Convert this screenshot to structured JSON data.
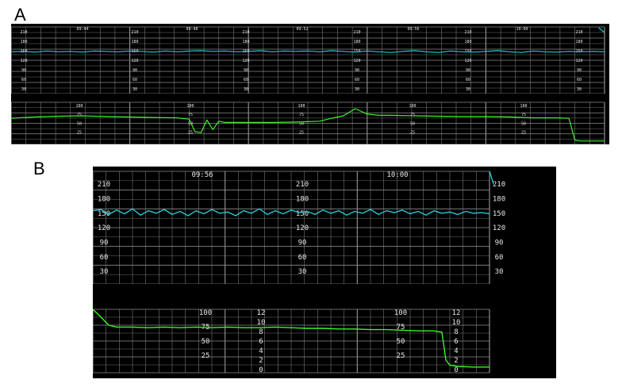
{
  "panel_a_label": "A",
  "panel_b_label": "B",
  "colors": {
    "background": "#000000",
    "grid": "#8c8c8c",
    "heart_rate_trace": "#27c6d6",
    "uterine_trace": "#3ef22d",
    "divider_band": "#000000"
  },
  "chart_data": [
    {
      "type": "line",
      "panel": "A",
      "grid": true,
      "heart_rate": {
        "tick_labels": [
          "210",
          "180",
          "150",
          "120",
          "90",
          "60",
          "30"
        ],
        "ylim": [
          30,
          210
        ],
        "time_labels": [
          "09:44",
          "09:48",
          "09:52",
          "09:56",
          "10:00"
        ],
        "series": [
          {
            "x": [
              0,
              2,
              4,
              6,
              8,
              10,
              12,
              14,
              16,
              18,
              20,
              22,
              24,
              26,
              28,
              30,
              32,
              34,
              36,
              38,
              40,
              42,
              44,
              46,
              48,
              50,
              52,
              54,
              56,
              58,
              60,
              62,
              64,
              66,
              68,
              70,
              72,
              74,
              76,
              78,
              80,
              82,
              84,
              86,
              88,
              90,
              92,
              94,
              96,
              98,
              100
            ],
            "values": [
              143,
              144,
              142,
              145,
              143,
              144,
              142,
              145,
              144,
              143,
              145,
              144,
              142,
              145,
              143,
              145,
              146,
              144,
              145,
              143,
              144,
              146,
              143,
              145,
              144,
              145,
              143,
              146,
              144,
              142,
              145,
              143,
              141,
              144,
              146,
              143,
              141,
              145,
              143,
              142,
              144,
              146,
              143,
              141,
              145,
              143,
              142,
              144,
              143,
              144,
              143
            ]
          },
          {
            "x": [
              99,
              100
            ],
            "values": [
              208,
              195
            ]
          }
        ]
      },
      "uterine_activity": {
        "tick_labels": [
          "100",
          "75",
          "50",
          "25"
        ],
        "ylim": [
          0,
          100
        ],
        "series": [
          {
            "x": [
              0,
              4,
              8,
              12,
              16,
              20,
              24,
              28,
              30,
              31,
              32,
              33,
              34,
              35,
              36,
              40,
              44,
              48,
              52,
              54,
              56,
              58,
              60,
              62,
              64,
              68,
              72,
              76,
              80,
              84,
              88,
              92,
              94,
              95,
              96,
              100
            ],
            "values": [
              62,
              65,
              67,
              68,
              66,
              65,
              64,
              63,
              60,
              30,
              28,
              58,
              35,
              55,
              52,
              52,
              52,
              53,
              55,
              62,
              68,
              85,
              72,
              69,
              69,
              68,
              67,
              66,
              66,
              65,
              63,
              63,
              62,
              10,
              8,
              8
            ]
          }
        ]
      }
    },
    {
      "type": "line",
      "panel": "B",
      "grid": true,
      "heart_rate": {
        "tick_labels": [
          "210",
          "180",
          "150",
          "120",
          "90",
          "60",
          "30"
        ],
        "ylim": [
          30,
          210
        ],
        "time_labels": [
          "09:56",
          "10:00"
        ],
        "series": [
          {
            "x": [
              0,
              2,
              4,
              6,
              8,
              10,
              12,
              14,
              16,
              18,
              20,
              22,
              24,
              26,
              28,
              30,
              32,
              34,
              36,
              38,
              40,
              42,
              44,
              46,
              48,
              50,
              52,
              54,
              56,
              58,
              60,
              62,
              64,
              66,
              68,
              70,
              72,
              74,
              76,
              78,
              80,
              82,
              84,
              86,
              88,
              90,
              92,
              94,
              96,
              98,
              100
            ],
            "values": [
              147,
              149,
              141,
              148,
              142,
              150,
              140,
              147,
              143,
              149,
              141,
              146,
              139,
              147,
              142,
              149,
              143,
              145,
              139,
              147,
              143,
              150,
              141,
              147,
              142,
              148,
              144,
              146,
              141,
              148,
              143,
              147,
              140,
              146,
              143,
              149,
              141,
              147,
              144,
              148,
              142,
              146,
              140,
              147,
              143,
              145,
              141,
              146,
              143,
              144,
              142
            ]
          },
          {
            "x": [
              100,
              100.5,
              101
            ],
            "values": [
              210,
              200,
              190
            ]
          }
        ]
      },
      "uterine_activity": {
        "tick_labels": [
          "100",
          "75",
          "50",
          "25"
        ],
        "ylim": [
          0,
          100
        ],
        "right_tick_labels": [
          "12",
          "10",
          "8",
          "6",
          "4",
          "2",
          "0"
        ],
        "series": [
          {
            "x": [
              0,
              2,
              4,
              6,
              8,
              10,
              14,
              18,
              22,
              26,
              30,
              34,
              38,
              42,
              46,
              50,
              54,
              58,
              62,
              66,
              70,
              74,
              78,
              82,
              86,
              88,
              89,
              90,
              92,
              96,
              100
            ],
            "values": [
              100,
              88,
              75,
              72,
              72,
              72,
              71,
              72,
              71,
              72,
              71,
              72,
              71,
              71,
              72,
              71,
              70,
              70,
              69,
              69,
              68,
              68,
              67,
              66,
              66,
              64,
              20,
              12,
              10,
              9,
              9
            ]
          }
        ]
      }
    }
  ]
}
